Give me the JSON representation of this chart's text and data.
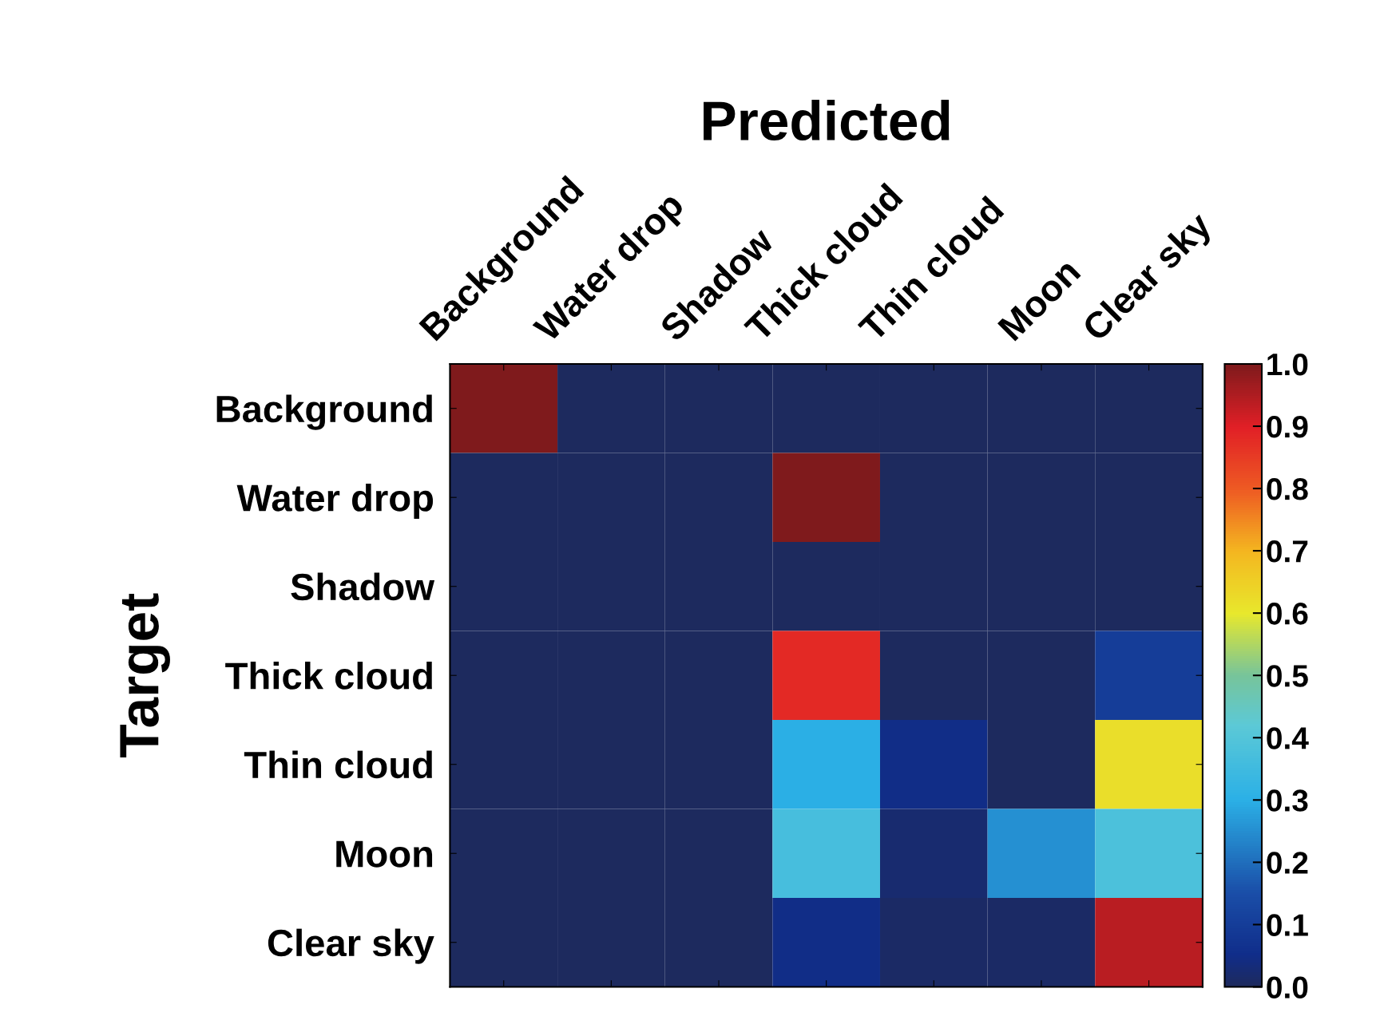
{
  "chart_data": {
    "type": "heatmap",
    "xlabel": "Predicted",
    "ylabel": "Target",
    "categories": [
      "Background",
      "Water drop",
      "Shadow",
      "Thick cloud",
      "Thin cloud",
      "Moon",
      "Clear sky"
    ],
    "y_categories": [
      "Background",
      "Water drop",
      "Shadow",
      "Thick cloud",
      "Thin cloud",
      "Moon",
      "Clear sky"
    ],
    "cells": [
      [
        1.0,
        0,
        0,
        0,
        0,
        0,
        0
      ],
      [
        0,
        0,
        0,
        1.0,
        0,
        0,
        0
      ],
      [
        0,
        0,
        0,
        0,
        0,
        0,
        0
      ],
      [
        0,
        0,
        0,
        0.88,
        0,
        0,
        0.1
      ],
      [
        0,
        0,
        0,
        0.3,
        0.05,
        0,
        0.62
      ],
      [
        0,
        0,
        0,
        0.37,
        0.02,
        0.25,
        0.38
      ],
      [
        0,
        0,
        0,
        0.05,
        0.01,
        0.01,
        0.94
      ]
    ],
    "clim": [
      0,
      1
    ],
    "cticks": [
      {
        "value": 0,
        "label": "0.0"
      },
      {
        "value": 0.1,
        "label": "0.1"
      },
      {
        "value": 0.2,
        "label": "0.2"
      },
      {
        "value": 0.3,
        "label": "0.3"
      },
      {
        "value": 0.4,
        "label": "0.4"
      },
      {
        "value": 0.5,
        "label": "0.5"
      },
      {
        "value": 0.6,
        "label": "0.6"
      },
      {
        "value": 0.7,
        "label": "0.7"
      },
      {
        "value": 0.8,
        "label": "0.8"
      },
      {
        "value": 0.9,
        "label": "0.9"
      },
      {
        "value": 1,
        "label": "1.0"
      }
    ]
  }
}
